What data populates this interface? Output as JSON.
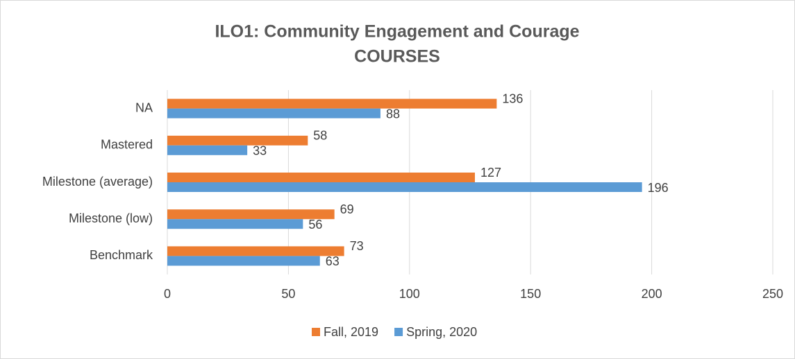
{
  "chart_data": {
    "type": "hbar",
    "title": [
      "ILO1:  Community Engagement and Courage",
      "COURSES"
    ],
    "categories": [
      "NA",
      "Mastered",
      "Milestone (average)",
      "Milestone (low)",
      "Benchmark"
    ],
    "series": [
      {
        "name": "Fall, 2019",
        "color": "#ed7d31",
        "values": [
          136,
          58,
          127,
          69,
          73
        ]
      },
      {
        "name": "Spring, 2020",
        "color": "#5b9bd5",
        "values": [
          88,
          33,
          196,
          56,
          63
        ]
      }
    ],
    "xlim": [
      0,
      250
    ],
    "xticks": [
      0,
      50,
      100,
      150,
      200,
      250
    ],
    "grid": true,
    "legend": "bottom"
  }
}
